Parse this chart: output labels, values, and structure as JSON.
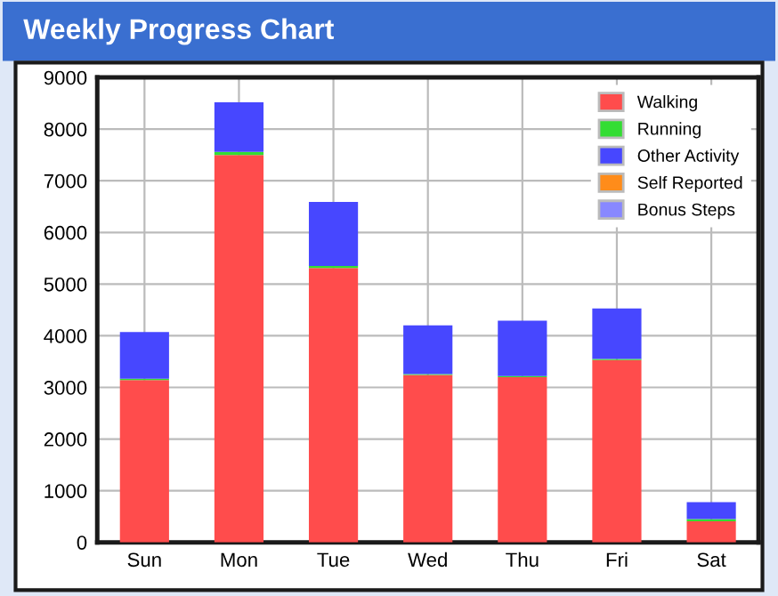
{
  "chart_data": {
    "type": "bar",
    "title": "Weekly Progress Chart",
    "stacked": true,
    "categories": [
      "Sun",
      "Mon",
      "Tue",
      "Wed",
      "Thu",
      "Fri",
      "Sat"
    ],
    "series": [
      {
        "name": "Walking",
        "color": "#ff4c4c",
        "values": [
          3140,
          7500,
          5310,
          3240,
          3200,
          3530,
          410
        ]
      },
      {
        "name": "Running",
        "color": "#33dd33",
        "values": [
          30,
          60,
          40,
          20,
          20,
          20,
          40
        ]
      },
      {
        "name": "Other Activity",
        "color": "#4747ff",
        "values": [
          900,
          960,
          1240,
          940,
          1070,
          980,
          330
        ]
      },
      {
        "name": "Self Reported",
        "color": "#ff8c1a",
        "values": [
          0,
          0,
          0,
          0,
          0,
          0,
          0
        ]
      },
      {
        "name": "Bonus Steps",
        "color": "#8888ff",
        "values": [
          0,
          0,
          0,
          0,
          0,
          0,
          0
        ]
      }
    ],
    "ylim": [
      0,
      9000
    ],
    "yticks": [
      0,
      1000,
      2000,
      3000,
      4000,
      5000,
      6000,
      7000,
      8000,
      9000
    ],
    "grid": true,
    "legend": "top right"
  }
}
